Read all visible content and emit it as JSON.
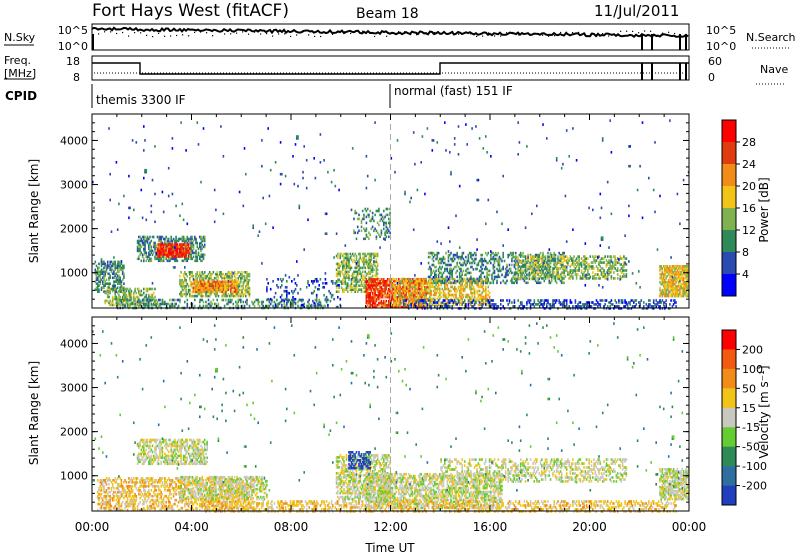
{
  "header": {
    "station": "Fort Hays West (fitACF)",
    "beam": "Beam 18",
    "date": "11/Jul/2011"
  },
  "top_panels": {
    "nsky_label": "N.Sky",
    "nsky_ticks": [
      "10^5",
      "10^0"
    ],
    "nsearch_label": "N.Search",
    "nsearch_ticks": [
      "10^5",
      "10^0"
    ],
    "freq_label": "Freq.",
    "freq_unit": "[MHz]",
    "freq_ticks": [
      "18",
      "8"
    ],
    "nave_label": "Nave",
    "nave_ticks": [
      "60",
      "0"
    ],
    "cpid_label": "CPID",
    "cpid_segments": [
      {
        "start_hour": 0,
        "label": "themis 3300 IF"
      },
      {
        "start_hour": 12,
        "label": "normal (fast) 151 IF"
      }
    ]
  },
  "chart_data": [
    {
      "type": "heatmap",
      "panel": "power",
      "xlabel": "",
      "ylabel": "Slant Range [km]",
      "x_range_hours": [
        0,
        24
      ],
      "ylim": [
        200,
        4600
      ],
      "yticks": [
        1000,
        2000,
        3000,
        4000
      ],
      "colorbar_label": "Power [dB]",
      "colorbar_ticks": [
        "4",
        "8",
        "12",
        "16",
        "20",
        "24",
        "28"
      ],
      "colorbar_colors": [
        "#0000ff",
        "#2b4bb3",
        "#2e8b57",
        "#7fb24f",
        "#f2c418",
        "#f28c18",
        "#e03c10",
        "#ff0000"
      ],
      "noon_line_hour": 12,
      "regions": [
        {
          "t0": 0.1,
          "t1": 1.3,
          "r0": 600,
          "r1": 1300,
          "density": 0.55,
          "level": 2
        },
        {
          "t0": 0.5,
          "t1": 2.5,
          "r0": 300,
          "r1": 700,
          "density": 0.5,
          "level": 3
        },
        {
          "t0": 1.8,
          "t1": 4.5,
          "r0": 1300,
          "r1": 1850,
          "density": 0.5,
          "level": 2
        },
        {
          "t0": 2.6,
          "t1": 3.9,
          "r0": 1400,
          "r1": 1700,
          "density": 0.85,
          "level": 6
        },
        {
          "t0": 3.5,
          "t1": 6.3,
          "r0": 500,
          "r1": 1050,
          "density": 0.55,
          "level": 3
        },
        {
          "t0": 4.0,
          "t1": 5.8,
          "r0": 600,
          "r1": 850,
          "density": 0.8,
          "level": 5
        },
        {
          "t0": 1.0,
          "t1": 9.5,
          "r0": 230,
          "r1": 450,
          "density": 0.35,
          "level": 2
        },
        {
          "t0": 7.0,
          "t1": 10.0,
          "r0": 250,
          "r1": 900,
          "density": 0.12,
          "level": 1
        },
        {
          "t0": 9.8,
          "t1": 11.5,
          "r0": 600,
          "r1": 1500,
          "density": 0.5,
          "level": 3
        },
        {
          "t0": 10.5,
          "t1": 12.0,
          "r0": 1800,
          "r1": 2500,
          "density": 0.25,
          "level": 2
        },
        {
          "t0": 11.0,
          "t1": 13.5,
          "r0": 250,
          "r1": 900,
          "density": 0.75,
          "level": 6
        },
        {
          "t0": 12.0,
          "t1": 16.0,
          "r0": 300,
          "r1": 900,
          "density": 0.5,
          "level": 4
        },
        {
          "t0": 13.5,
          "t1": 19.0,
          "r0": 800,
          "r1": 1500,
          "density": 0.35,
          "level": 2
        },
        {
          "t0": 17.0,
          "t1": 21.5,
          "r0": 900,
          "r1": 1400,
          "density": 0.45,
          "level": 3
        },
        {
          "t0": 12.5,
          "t1": 23.5,
          "r0": 220,
          "r1": 420,
          "density": 0.35,
          "level": 1
        },
        {
          "t0": 22.8,
          "t1": 24.0,
          "r0": 500,
          "r1": 1200,
          "density": 0.75,
          "level": 4
        },
        {
          "t0": 0.0,
          "t1": 24.0,
          "r0": 700,
          "r1": 4500,
          "density": 0.008,
          "level": 1
        }
      ]
    },
    {
      "type": "heatmap",
      "panel": "velocity",
      "xlabel": "Time UT",
      "ylabel": "Slant Range [km]",
      "x_range_hours": [
        0,
        24
      ],
      "xticks": [
        "00:00",
        "04:00",
        "08:00",
        "12:00",
        "16:00",
        "20:00",
        "00:00"
      ],
      "ylim": [
        200,
        4600
      ],
      "yticks": [
        1000,
        2000,
        3000,
        4000
      ],
      "colorbar_label": "Velocity [m s⁻¹]",
      "colorbar_ticks": [
        "200",
        "100",
        "50",
        "15",
        "-15",
        "-50",
        "-100",
        "-200"
      ],
      "colorbar_colors": [
        "#1f3fbf",
        "#2f6fa0",
        "#2e8b57",
        "#66cc33",
        "#c8c8c0",
        "#f2c418",
        "#f28c18",
        "#f25a10",
        "#ff0000"
      ],
      "noon_line_hour": 12,
      "regions": [
        {
          "t0": 0.2,
          "t1": 6.5,
          "r0": 250,
          "r1": 1000,
          "density": 0.45,
          "level": 5
        },
        {
          "t0": 1.8,
          "t1": 4.6,
          "r0": 1300,
          "r1": 1850,
          "density": 0.55,
          "level": 4
        },
        {
          "t0": 3.5,
          "t1": 7.0,
          "r0": 500,
          "r1": 1000,
          "density": 0.5,
          "level": 4
        },
        {
          "t0": 4.5,
          "t1": 12.0,
          "r0": 220,
          "r1": 450,
          "density": 0.45,
          "level": 5
        },
        {
          "t0": 9.8,
          "t1": 12.0,
          "r0": 500,
          "r1": 1500,
          "density": 0.55,
          "level": 4
        },
        {
          "t0": 10.3,
          "t1": 11.2,
          "r0": 1200,
          "r1": 1600,
          "density": 0.5,
          "level": 0
        },
        {
          "t0": 11.0,
          "t1": 16.5,
          "r0": 300,
          "r1": 1100,
          "density": 0.55,
          "level": 4
        },
        {
          "t0": 12.0,
          "t1": 23.5,
          "r0": 220,
          "r1": 450,
          "density": 0.4,
          "level": 5
        },
        {
          "t0": 14.0,
          "t1": 21.5,
          "r0": 900,
          "r1": 1400,
          "density": 0.35,
          "level": 4
        },
        {
          "t0": 22.8,
          "t1": 24.0,
          "r0": 500,
          "r1": 1200,
          "density": 0.7,
          "level": 4
        },
        {
          "t0": 0.0,
          "t1": 24.0,
          "r0": 700,
          "r1": 4500,
          "density": 0.008,
          "level": 2
        }
      ]
    }
  ]
}
